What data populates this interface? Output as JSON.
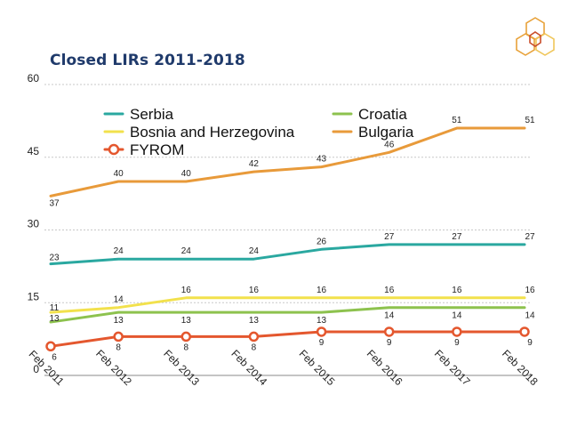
{
  "chart_data": {
    "type": "line",
    "title": "Closed LIRs 2011-2018",
    "categories": [
      "Feb 2011",
      "Feb 2012",
      "Feb 2013",
      "Feb 2014",
      "Feb 2015",
      "Feb 2016",
      "Feb 2017",
      "Feb 2018"
    ],
    "y_ticks": [
      "0",
      "15",
      "30",
      "45",
      "60"
    ],
    "ylim": [
      0,
      60
    ],
    "grid": true,
    "legend_position": "top",
    "series": [
      {
        "name": "Serbia",
        "color": "#2aa8a0",
        "values": [
          23,
          24,
          24,
          24,
          26,
          27,
          27,
          27
        ]
      },
      {
        "name": "Croatia",
        "color": "#8dc24e",
        "values": [
          11,
          13,
          13,
          13,
          13,
          14,
          14,
          14
        ]
      },
      {
        "name": "Bosnia and Herzegovina",
        "color": "#f2e14c",
        "values": [
          13,
          14,
          16,
          16,
          16,
          16,
          16,
          16
        ]
      },
      {
        "name": "Bulgaria",
        "color": "#e89a3a",
        "values": [
          37,
          40,
          40,
          42,
          43,
          46,
          51,
          51
        ]
      },
      {
        "name": "FYROM",
        "color": "#e4572e",
        "values": [
          6,
          8,
          8,
          8,
          9,
          9,
          9,
          9
        ],
        "markers": true
      }
    ]
  }
}
